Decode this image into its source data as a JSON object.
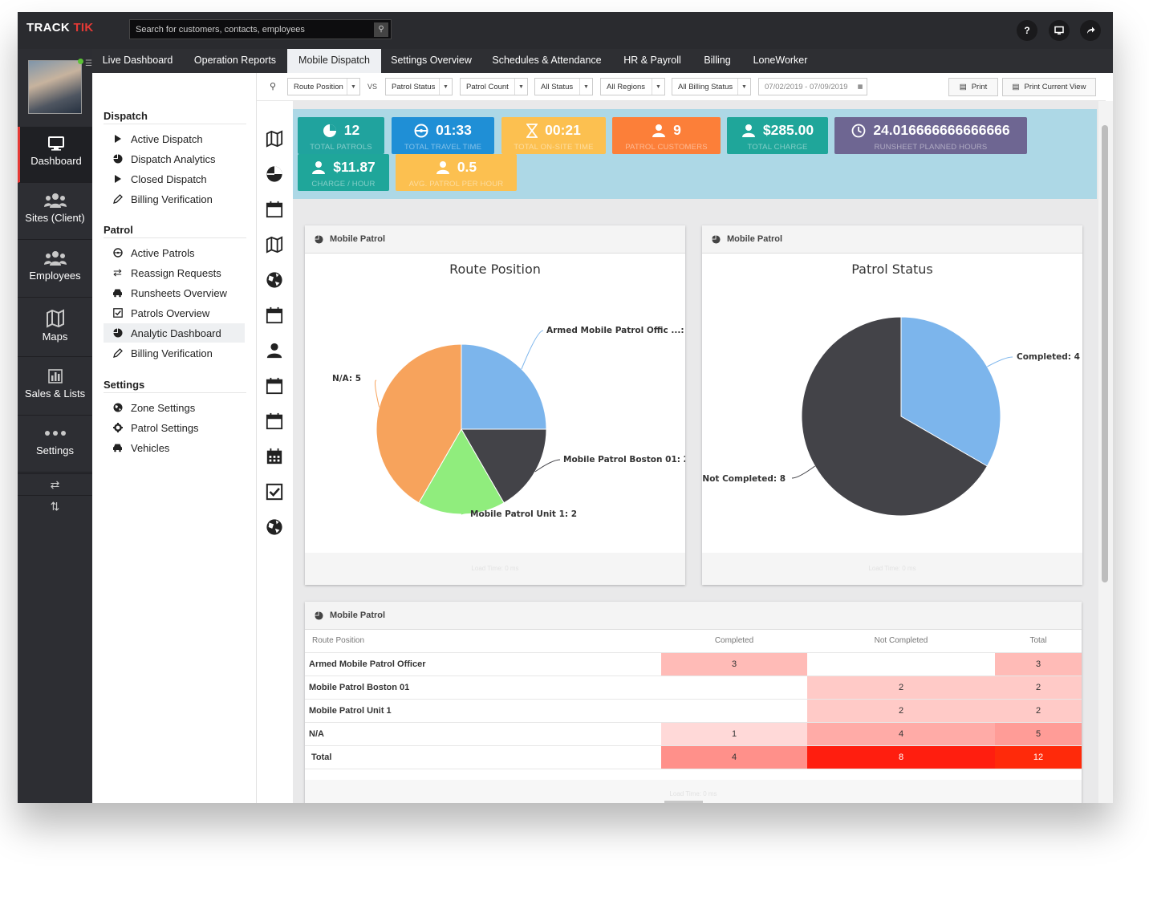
{
  "app": {
    "logo_left": "TRACK",
    "logo_right": "TIK"
  },
  "search": {
    "placeholder": "Search for customers, contacts, employees"
  },
  "topbar": {
    "help_label": "?"
  },
  "leftnav": [
    {
      "label": "Dashboard",
      "icon": "monitor-icon"
    },
    {
      "label": "Sites (Client)",
      "icon": "people-icon"
    },
    {
      "label": "Employees",
      "icon": "people-icon"
    },
    {
      "label": "Maps",
      "icon": "map-icon"
    },
    {
      "label": "Sales & Lists",
      "icon": "bar-chart-icon"
    },
    {
      "label": "Settings",
      "icon": "dots-icon"
    }
  ],
  "tabs": [
    "Live Dashboard",
    "Operation Reports",
    "Mobile Dispatch",
    "Settings Overview",
    "Schedules & Attendance",
    "HR & Payroll",
    "Billing",
    "LoneWorker"
  ],
  "subnav": {
    "dispatch": {
      "title": "Dispatch",
      "items": [
        "Active Dispatch",
        "Dispatch Analytics",
        "Closed Dispatch",
        "Billing Verification"
      ]
    },
    "patrol": {
      "title": "Patrol",
      "items": [
        "Active Patrols",
        "Reassign Requests",
        "Runsheets Overview",
        "Patrols Overview",
        "Analytic Dashboard",
        "Billing Verification"
      ]
    },
    "settings": {
      "title": "Settings",
      "items": [
        "Zone Settings",
        "Patrol Settings",
        "Vehicles"
      ]
    }
  },
  "filters": {
    "vs_label": "VS",
    "route": "Route Position",
    "status": "Patrol Status",
    "count": "Patrol Count",
    "all_status": "All Status",
    "all_regions": "All Regions",
    "billing": "All Billing Status",
    "date_range": "07/02/2019 - 07/09/2019",
    "print": "Print",
    "print_current": "Print Current View"
  },
  "kpis": [
    {
      "value": "12",
      "label": "TOTAL PATROLS",
      "color": "#20a39e"
    },
    {
      "value": "01:33",
      "label": "TOTAL TRAVEL TIME",
      "color": "#1f8fd6"
    },
    {
      "value": "00:21",
      "label": "TOTAL ON-SITE TIME",
      "color": "#fcc050"
    },
    {
      "value": "9",
      "label": "PATROL CUSTOMERS",
      "color": "#fc7f39"
    },
    {
      "value": "$285.00",
      "label": "TOTAL CHARGE",
      "color": "#1fa69a"
    },
    {
      "value": "24.016666666666666",
      "label": "RUNSHEET PLANNED HOURS",
      "color": "#6e6692"
    },
    {
      "value": "$11.87",
      "label": "CHARGE / HOUR",
      "color": "#1fa69a"
    },
    {
      "value": "0.5",
      "label": "AVG. PATROL PER HOUR",
      "color": "#fcc050"
    }
  ],
  "cards": {
    "header": "Mobile Patrol",
    "footer": "Load Time: 0 ms"
  },
  "chart_data": [
    {
      "type": "pie",
      "title": "Route Position",
      "categories": [
        "Armed Mobile Patrol Offic ...",
        "Mobile Patrol Boston 01",
        "Mobile Patrol Unit 1",
        "N/A"
      ],
      "values": [
        3,
        2,
        2,
        5
      ],
      "colors": [
        "#7cb5ec",
        "#434348",
        "#90ed7d",
        "#f7a35c"
      ],
      "labels": [
        "Armed Mobile Patrol Offic ...: 3",
        "Mobile Patrol Boston 01: 2",
        "Mobile Patrol Unit 1: 2",
        "N/A: 5"
      ]
    },
    {
      "type": "pie",
      "title": "Patrol Status",
      "categories": [
        "Completed",
        "Not Completed"
      ],
      "values": [
        4,
        8
      ],
      "colors": [
        "#7cb5ec",
        "#434348"
      ],
      "labels": [
        "Completed: 4",
        "Not Completed: 8"
      ]
    }
  ],
  "table": {
    "headers": [
      "Route Position",
      "Completed",
      "Not Completed",
      "Total"
    ],
    "rows": [
      {
        "label": "Armed Mobile Patrol Officer",
        "completed": "3",
        "not_completed": "",
        "total": "3"
      },
      {
        "label": "Mobile Patrol Boston 01",
        "completed": "",
        "not_completed": "2",
        "total": "2"
      },
      {
        "label": "Mobile Patrol Unit 1",
        "completed": "",
        "not_completed": "2",
        "total": "2"
      },
      {
        "label": "N/A",
        "completed": "1",
        "not_completed": "4",
        "total": "5"
      },
      {
        "label": "Total",
        "completed": "4",
        "not_completed": "8",
        "total": "12"
      }
    ]
  }
}
